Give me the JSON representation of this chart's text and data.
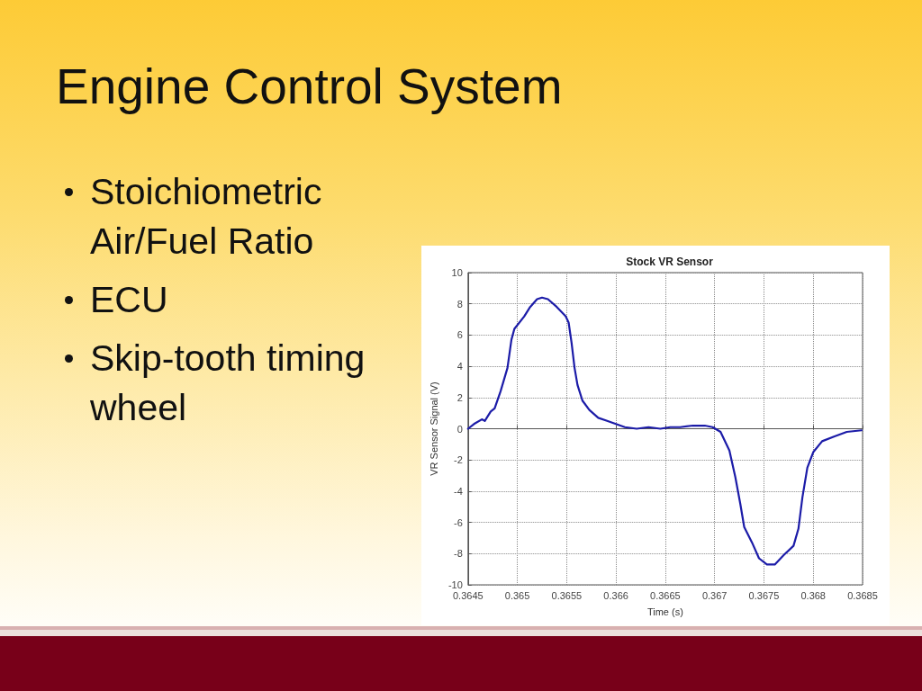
{
  "chart_data": {
    "type": "line",
    "title": "Stock VR Sensor",
    "xlabel": "Time (s)",
    "ylabel": "VR Sensor Signal (V)",
    "annotations": [
      "Engine Control System",
      "Stoichiometric Air/Fuel Ratio",
      "ECU",
      "Skip-tooth timing wheel"
    ],
    "x": [
      0.3645,
      0.36456,
      0.36464,
      0.36467,
      0.36473,
      0.36477,
      0.36483,
      0.3649,
      0.36494,
      0.36497,
      0.36507,
      0.36513,
      0.3652,
      0.36525,
      0.36531,
      0.3654,
      0.36549,
      0.36552,
      0.36555,
      0.36558,
      0.36561,
      0.36566,
      0.36573,
      0.36582,
      0.36591,
      0.366,
      0.36609,
      0.36621,
      0.36633,
      0.36645,
      0.36655,
      0.36665,
      0.36678,
      0.3669,
      0.36698,
      0.36706,
      0.36715,
      0.36721,
      0.36726,
      0.3673,
      0.36738,
      0.36745,
      0.36753,
      0.36761,
      0.3677,
      0.3678,
      0.36785,
      0.36789,
      0.36794,
      0.368,
      0.36809,
      0.36821,
      0.36834,
      0.36849
    ],
    "series": [
      {
        "color": "#1c1ca8",
        "values": [
          0.0,
          0.3,
          0.6,
          0.5,
          1.1,
          1.3,
          2.4,
          3.9,
          5.7,
          6.4,
          7.2,
          7.8,
          8.3,
          8.4,
          8.3,
          7.8,
          7.2,
          6.8,
          5.5,
          3.9,
          2.8,
          1.8,
          1.2,
          0.7,
          0.5,
          0.3,
          0.1,
          0.0,
          0.1,
          0.0,
          0.1,
          0.1,
          0.2,
          0.2,
          0.1,
          -0.2,
          -1.4,
          -3.1,
          -4.8,
          -6.3,
          -7.3,
          -8.3,
          -8.7,
          -8.7,
          -8.1,
          -7.5,
          -6.4,
          -4.4,
          -2.5,
          -1.5,
          -0.8,
          -0.5,
          -0.2,
          -0.1
        ]
      }
    ],
    "xlim": [
      0.3645,
      0.3685
    ],
    "xticks": [
      0.3645,
      0.365,
      0.3655,
      0.366,
      0.3665,
      0.367,
      0.3675,
      0.368,
      0.3685
    ],
    "ylim": [
      -10,
      10
    ],
    "yticks": [
      -10,
      -8,
      -6,
      -4,
      -2,
      0,
      2,
      4,
      6,
      8,
      10
    ],
    "grid": true,
    "marker": "none",
    "line_style": "solid"
  }
}
